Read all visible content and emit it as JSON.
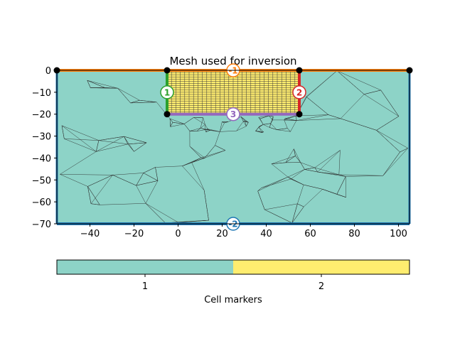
{
  "chart_data": {
    "type": "mesh",
    "title": "Mesh used for inversion",
    "xlim": [
      -55,
      105
    ],
    "ylim": [
      -70,
      0
    ],
    "x_ticks": [
      -40,
      -20,
      0,
      20,
      40,
      60,
      80,
      100
    ],
    "y_ticks": [
      0,
      -10,
      -20,
      -30,
      -40,
      -50,
      -60,
      -70
    ],
    "regions": [
      {
        "marker": 1,
        "color": "#8dd3c7",
        "x": [
          -55,
          105
        ],
        "y": [
          -70,
          0
        ],
        "cell_type": "triangular"
      },
      {
        "marker": 2,
        "color": "#ffed6f",
        "x": [
          -5,
          55
        ],
        "y": [
          -20,
          0
        ],
        "cell_type": "rectangular",
        "dx": 2,
        "dy": 1
      }
    ],
    "boundaries": [
      {
        "label": "-1",
        "color": "#ff7f0e",
        "from": [
          -55,
          0
        ],
        "to": [
          105,
          0
        ],
        "label_at": [
          25,
          0
        ]
      },
      {
        "label": "-2",
        "color": "#1f77b4",
        "from": [
          -55,
          -70
        ],
        "to": [
          105,
          -70
        ],
        "label_at": [
          25,
          -70
        ]
      },
      {
        "label": "1",
        "color": "#2ca02c",
        "from": [
          -5,
          0
        ],
        "to": [
          -5,
          -20
        ],
        "label_at": [
          -5,
          -10
        ]
      },
      {
        "label": "2",
        "color": "#d62728",
        "from": [
          55,
          0
        ],
        "to": [
          55,
          -20
        ],
        "label_at": [
          55,
          -10
        ]
      },
      {
        "label": "3",
        "color": "#9467bd",
        "from": [
          -5,
          -20
        ],
        "to": [
          55,
          -20
        ],
        "label_at": [
          25,
          -20
        ]
      }
    ],
    "nodes": [
      [
        -55,
        0
      ],
      [
        -5,
        0
      ],
      [
        55,
        0
      ],
      [
        105,
        0
      ],
      [
        -5,
        -20
      ],
      [
        55,
        -20
      ]
    ],
    "colorbar": {
      "label": "Cell markers",
      "ticks": [
        "1",
        "2"
      ],
      "colors": [
        "#8dd3c7",
        "#ffed6f"
      ]
    }
  }
}
